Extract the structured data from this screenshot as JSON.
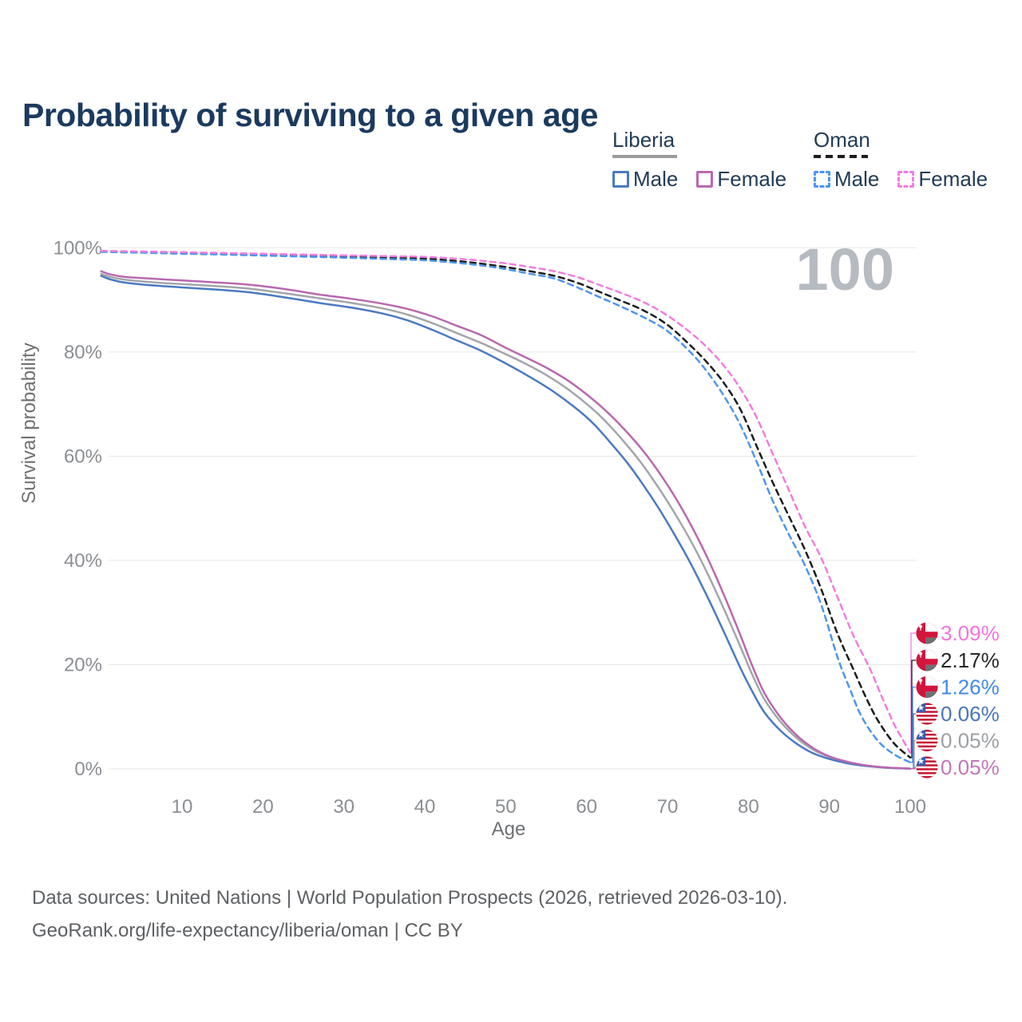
{
  "header": {
    "title": "Probability of surviving to a given age"
  },
  "legend": {
    "groups": [
      {
        "title": "Liberia",
        "line_style": "solid",
        "line_color": "#9b9b9b",
        "items": [
          {
            "label": "Male",
            "color": "#4a7ac2"
          },
          {
            "label": "Female",
            "color": "#b968af"
          }
        ]
      },
      {
        "title": "Oman",
        "line_style": "dashed",
        "line_color": "#1b1c1e",
        "items": [
          {
            "label": "Male",
            "color": "#4e95ec"
          },
          {
            "label": "Female",
            "color": "#f27ddf"
          }
        ]
      }
    ]
  },
  "chart_data": {
    "type": "line",
    "title": "Probability of surviving to a given age",
    "xlabel": "Age",
    "ylabel": "Survival probability",
    "xlim": [
      0,
      100
    ],
    "ylim": [
      0,
      100
    ],
    "grid": "horizontal-only",
    "x_ticks": [
      10,
      20,
      30,
      40,
      50,
      60,
      70,
      80,
      90,
      100
    ],
    "y_ticks": [
      {
        "value": 0,
        "label": "0%"
      },
      {
        "value": 20,
        "label": "20%"
      },
      {
        "value": 40,
        "label": "40%"
      },
      {
        "value": 60,
        "label": "60%"
      },
      {
        "value": 80,
        "label": "80%"
      },
      {
        "value": 100,
        "label": "100%"
      }
    ],
    "age_counter": "100",
    "series": [
      {
        "name": "Oman Female",
        "country": "oman",
        "sex": "female",
        "dashed": true,
        "color": "#f27ddf",
        "end_label": "3.09%",
        "label_color": "#f673dc",
        "points": [
          [
            0,
            99.4
          ],
          [
            5,
            99.28
          ],
          [
            10,
            99.15
          ],
          [
            15,
            99.0
          ],
          [
            20,
            98.85
          ],
          [
            25,
            98.7
          ],
          [
            30,
            98.55
          ],
          [
            35,
            98.4
          ],
          [
            40,
            98.25
          ],
          [
            44,
            97.9
          ],
          [
            47,
            97.5
          ],
          [
            50,
            97.0
          ],
          [
            53,
            96.3
          ],
          [
            56,
            95.5
          ],
          [
            59,
            94.3
          ],
          [
            61.5,
            92.9
          ],
          [
            64,
            91.5
          ],
          [
            67,
            89.6
          ],
          [
            70,
            87.0
          ],
          [
            73,
            83.5
          ],
          [
            75,
            80.7
          ],
          [
            77,
            77.3
          ],
          [
            79,
            73.0
          ],
          [
            81,
            67.5
          ],
          [
            83,
            60.5
          ],
          [
            85,
            53.5
          ],
          [
            87,
            46.5
          ],
          [
            89,
            40.5
          ],
          [
            91,
            33.0
          ],
          [
            93,
            25.5
          ],
          [
            95,
            19.3
          ],
          [
            96.5,
            13.8
          ],
          [
            98,
            8.6
          ],
          [
            99,
            5.8
          ],
          [
            100,
            3.09
          ]
        ]
      },
      {
        "name": "Oman",
        "country": "oman",
        "sex": "both",
        "dashed": true,
        "color": "#1b1c1e",
        "end_label": "2.17%",
        "label_color": "#26272a",
        "points": [
          [
            0,
            99.3
          ],
          [
            5,
            99.15
          ],
          [
            10,
            99.0
          ],
          [
            15,
            98.85
          ],
          [
            20,
            98.7
          ],
          [
            25,
            98.5
          ],
          [
            30,
            98.3
          ],
          [
            35,
            98.1
          ],
          [
            40,
            97.9
          ],
          [
            44,
            97.45
          ],
          [
            47,
            96.95
          ],
          [
            50,
            96.3
          ],
          [
            53,
            95.5
          ],
          [
            56,
            94.6
          ],
          [
            59,
            93.2
          ],
          [
            61.5,
            91.6
          ],
          [
            64,
            90.0
          ],
          [
            67,
            88.0
          ],
          [
            70,
            85.2
          ],
          [
            73,
            81.0
          ],
          [
            75,
            77.8
          ],
          [
            77,
            74.0
          ],
          [
            79,
            69.0
          ],
          [
            81,
            62.0
          ],
          [
            83,
            55.0
          ],
          [
            85,
            48.5
          ],
          [
            87,
            42.0
          ],
          [
            89,
            34.5
          ],
          [
            91,
            26.0
          ],
          [
            93,
            19.0
          ],
          [
            94.5,
            13.8
          ],
          [
            96,
            9.3
          ],
          [
            98,
            4.9
          ],
          [
            100,
            2.17
          ]
        ]
      },
      {
        "name": "Oman Male",
        "country": "oman",
        "sex": "male",
        "dashed": true,
        "color": "#4e95ec",
        "end_label": "1.26%",
        "label_color": "#418ae8",
        "points": [
          [
            0,
            99.2
          ],
          [
            5,
            99.05
          ],
          [
            10,
            98.85
          ],
          [
            15,
            98.7
          ],
          [
            20,
            98.5
          ],
          [
            25,
            98.3
          ],
          [
            30,
            98.1
          ],
          [
            35,
            97.85
          ],
          [
            40,
            97.6
          ],
          [
            44,
            97.1
          ],
          [
            47,
            96.6
          ],
          [
            50,
            95.9
          ],
          [
            53,
            95.0
          ],
          [
            56,
            94.1
          ],
          [
            59,
            92.3
          ],
          [
            61.5,
            90.6
          ],
          [
            64,
            88.9
          ],
          [
            67,
            86.7
          ],
          [
            70,
            84.0
          ],
          [
            73,
            79.7
          ],
          [
            75,
            76.0
          ],
          [
            77,
            71.5
          ],
          [
            79,
            66.0
          ],
          [
            81,
            59.0
          ],
          [
            83,
            51.5
          ],
          [
            85,
            45.0
          ],
          [
            87,
            39.0
          ],
          [
            89,
            31.5
          ],
          [
            91,
            21.5
          ],
          [
            92.5,
            15.5
          ],
          [
            94,
            10.0
          ],
          [
            96,
            5.4
          ],
          [
            98,
            2.8
          ],
          [
            100,
            1.26
          ]
        ]
      },
      {
        "name": "Liberia Male",
        "country": "liberia",
        "sex": "male",
        "dashed": false,
        "color": "#4a7ac2",
        "end_label": "0.06%",
        "label_color": "#4a76b8",
        "points": [
          [
            0,
            94.6
          ],
          [
            1,
            94.0
          ],
          [
            3,
            93.3
          ],
          [
            7,
            92.7
          ],
          [
            12,
            92.2
          ],
          [
            18,
            91.5
          ],
          [
            23,
            90.4
          ],
          [
            27,
            89.4
          ],
          [
            31,
            88.5
          ],
          [
            35,
            87.3
          ],
          [
            38,
            86.0
          ],
          [
            41,
            84.2
          ],
          [
            44,
            82.2
          ],
          [
            47,
            80.2
          ],
          [
            50,
            77.8
          ],
          [
            53,
            75.2
          ],
          [
            56,
            72.3
          ],
          [
            59,
            68.8
          ],
          [
            61,
            66.0
          ],
          [
            63,
            62.5
          ],
          [
            65,
            58.8
          ],
          [
            67,
            54.5
          ],
          [
            69,
            49.8
          ],
          [
            71,
            44.6
          ],
          [
            73,
            39.0
          ],
          [
            75,
            32.8
          ],
          [
            77,
            26.2
          ],
          [
            79,
            19.4
          ],
          [
            80.5,
            14.8
          ],
          [
            82,
            10.8
          ],
          [
            84,
            7.3
          ],
          [
            86,
            4.8
          ],
          [
            88,
            3.0
          ],
          [
            90,
            1.9
          ],
          [
            92,
            1.15
          ],
          [
            94,
            0.65
          ],
          [
            96,
            0.35
          ],
          [
            98,
            0.15
          ],
          [
            100,
            0.06
          ]
        ]
      },
      {
        "name": "Liberia",
        "country": "liberia",
        "sex": "both",
        "dashed": false,
        "color": "#a3a6aa",
        "end_label": "0.05%",
        "label_color": "#9ca0a4",
        "points": [
          [
            0,
            95.0
          ],
          [
            1,
            94.45
          ],
          [
            3,
            93.85
          ],
          [
            7,
            93.3
          ],
          [
            12,
            92.85
          ],
          [
            18,
            92.2
          ],
          [
            23,
            91.2
          ],
          [
            27,
            90.3
          ],
          [
            31,
            89.4
          ],
          [
            35,
            88.3
          ],
          [
            38,
            87.1
          ],
          [
            41,
            85.5
          ],
          [
            44,
            83.6
          ],
          [
            47,
            81.7
          ],
          [
            49,
            80.3
          ],
          [
            52,
            78.1
          ],
          [
            55,
            75.6
          ],
          [
            58,
            72.5
          ],
          [
            61,
            68.7
          ],
          [
            63,
            65.6
          ],
          [
            65,
            62.1
          ],
          [
            67,
            58.2
          ],
          [
            69,
            53.7
          ],
          [
            71,
            48.8
          ],
          [
            73,
            43.4
          ],
          [
            75,
            37.3
          ],
          [
            77,
            30.6
          ],
          [
            79,
            23.5
          ],
          [
            80.5,
            18.0
          ],
          [
            82,
            13.3
          ],
          [
            84,
            9.0
          ],
          [
            86,
            5.9
          ],
          [
            88,
            3.7
          ],
          [
            90,
            2.3
          ],
          [
            92,
            1.4
          ],
          [
            94,
            0.8
          ],
          [
            96,
            0.4
          ],
          [
            98,
            0.18
          ],
          [
            100,
            0.05
          ]
        ]
      },
      {
        "name": "Liberia Female",
        "country": "liberia",
        "sex": "female",
        "dashed": false,
        "color": "#b968af",
        "end_label": "0.05%",
        "label_color": "#c277b8",
        "points": [
          [
            0,
            95.5
          ],
          [
            1,
            94.95
          ],
          [
            3,
            94.4
          ],
          [
            7,
            94.0
          ],
          [
            12,
            93.55
          ],
          [
            18,
            92.95
          ],
          [
            23,
            92.0
          ],
          [
            27,
            91.0
          ],
          [
            31,
            90.2
          ],
          [
            35,
            89.2
          ],
          [
            38,
            88.2
          ],
          [
            41,
            86.8
          ],
          [
            44,
            85.0
          ],
          [
            47,
            83.2
          ],
          [
            50,
            80.8
          ],
          [
            52,
            79.3
          ],
          [
            55,
            77.0
          ],
          [
            58,
            74.2
          ],
          [
            61,
            70.6
          ],
          [
            63,
            67.8
          ],
          [
            65,
            64.6
          ],
          [
            67,
            61.0
          ],
          [
            69,
            56.8
          ],
          [
            71,
            52.0
          ],
          [
            73,
            46.5
          ],
          [
            75,
            40.3
          ],
          [
            77,
            33.3
          ],
          [
            79,
            25.7
          ],
          [
            80.5,
            19.7
          ],
          [
            82,
            14.5
          ],
          [
            84,
            9.8
          ],
          [
            86,
            6.4
          ],
          [
            88,
            4.0
          ],
          [
            90,
            2.4
          ],
          [
            92,
            1.45
          ],
          [
            94,
            0.8
          ],
          [
            96,
            0.4
          ],
          [
            98,
            0.18
          ],
          [
            100,
            0.05
          ]
        ]
      }
    ],
    "flags": {
      "oman": {
        "red": "#d2153c",
        "white": "#ffffff",
        "bottom": "#6d7074"
      },
      "liberia": {
        "red": "#c8102e",
        "white": "#ffffff",
        "blue": "#3a5dae",
        "star": "#ffffff"
      }
    }
  },
  "footer": {
    "line1": "Data sources: United Nations | World Population Prospects (2026, retrieved 2026-03-10).",
    "line2": "GeoRank.org/life-expectancy/liberia/oman | CC BY"
  }
}
